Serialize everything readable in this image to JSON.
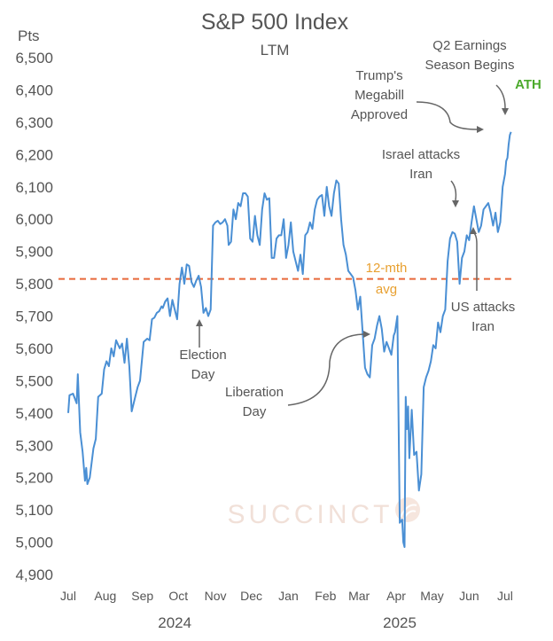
{
  "chart_data": {
    "type": "line",
    "title": "S&P 500 Index",
    "subtitle": "LTM",
    "ylabel": "Pts",
    "ylim": [
      4900,
      6500
    ],
    "yticks": [
      4900,
      5000,
      5100,
      5200,
      5300,
      5400,
      5500,
      5600,
      5700,
      5800,
      5900,
      6000,
      6100,
      6200,
      6300,
      6400,
      6500
    ],
    "ytick_labels": [
      "4,900",
      "5,000",
      "5,100",
      "5,200",
      "5,300",
      "5,400",
      "5,500",
      "5,600",
      "5,700",
      "5,800",
      "5,900",
      "6,000",
      "6,100",
      "6,200",
      "6,300",
      "6,400",
      "6,500"
    ],
    "xlim": [
      "2024-07-01",
      "2025-07-07"
    ],
    "xticks": [
      {
        "date": "2024-07-01",
        "label": "Jul"
      },
      {
        "date": "2024-08-01",
        "label": "Aug"
      },
      {
        "date": "2024-09-01",
        "label": "Sep"
      },
      {
        "date": "2024-10-01",
        "label": "Oct"
      },
      {
        "date": "2024-11-01",
        "label": "Nov"
      },
      {
        "date": "2024-12-01",
        "label": "Dec"
      },
      {
        "date": "2025-01-01",
        "label": "Jan"
      },
      {
        "date": "2025-02-01",
        "label": "Feb"
      },
      {
        "date": "2025-03-01",
        "label": "Mar"
      },
      {
        "date": "2025-04-01",
        "label": "Apr"
      },
      {
        "date": "2025-05-01",
        "label": "May"
      },
      {
        "date": "2025-06-01",
        "label": "Jun"
      },
      {
        "date": "2025-07-01",
        "label": "Jul"
      }
    ],
    "years": [
      {
        "label": "2024",
        "date": "2024-09-28"
      },
      {
        "label": "2025",
        "date": "2025-04-04"
      }
    ],
    "series": [
      {
        "color": "#4a8fd4",
        "points": [
          [
            "2024-07-01",
            5400
          ],
          [
            "2024-07-02",
            5455
          ],
          [
            "2024-07-05",
            5460
          ],
          [
            "2024-07-08",
            5430
          ],
          [
            "2024-07-09",
            5520
          ],
          [
            "2024-07-11",
            5340
          ],
          [
            "2024-07-13",
            5280
          ],
          [
            "2024-07-15",
            5190
          ],
          [
            "2024-07-16",
            5230
          ],
          [
            "2024-07-17",
            5180
          ],
          [
            "2024-07-19",
            5200
          ],
          [
            "2024-07-22",
            5290
          ],
          [
            "2024-07-24",
            5320
          ],
          [
            "2024-07-26",
            5450
          ],
          [
            "2024-07-29",
            5460
          ],
          [
            "2024-07-31",
            5535
          ],
          [
            "2024-08-02",
            5560
          ],
          [
            "2024-08-04",
            5545
          ],
          [
            "2024-08-06",
            5600
          ],
          [
            "2024-08-08",
            5575
          ],
          [
            "2024-08-10",
            5625
          ],
          [
            "2024-08-13",
            5600
          ],
          [
            "2024-08-15",
            5615
          ],
          [
            "2024-08-17",
            5555
          ],
          [
            "2024-08-19",
            5630
          ],
          [
            "2024-08-21",
            5545
          ],
          [
            "2024-08-23",
            5405
          ],
          [
            "2024-08-26",
            5450
          ],
          [
            "2024-08-28",
            5480
          ],
          [
            "2024-08-30",
            5500
          ],
          [
            "2024-09-02",
            5620
          ],
          [
            "2024-09-05",
            5630
          ],
          [
            "2024-09-07",
            5625
          ],
          [
            "2024-09-09",
            5690
          ],
          [
            "2024-09-11",
            5695
          ],
          [
            "2024-09-13",
            5710
          ],
          [
            "2024-09-15",
            5715
          ],
          [
            "2024-09-17",
            5730
          ],
          [
            "2024-09-18",
            5725
          ],
          [
            "2024-09-20",
            5745
          ],
          [
            "2024-09-22",
            5755
          ],
          [
            "2024-09-24",
            5700
          ],
          [
            "2024-09-26",
            5750
          ],
          [
            "2024-09-28",
            5720
          ],
          [
            "2024-09-30",
            5690
          ],
          [
            "2024-10-02",
            5800
          ],
          [
            "2024-10-04",
            5850
          ],
          [
            "2024-10-06",
            5800
          ],
          [
            "2024-10-08",
            5860
          ],
          [
            "2024-10-10",
            5855
          ],
          [
            "2024-10-12",
            5805
          ],
          [
            "2024-10-14",
            5790
          ],
          [
            "2024-10-16",
            5810
          ],
          [
            "2024-10-18",
            5825
          ],
          [
            "2024-10-20",
            5790
          ],
          [
            "2024-10-22",
            5710
          ],
          [
            "2024-10-24",
            5725
          ],
          [
            "2024-10-26",
            5700
          ],
          [
            "2024-10-28",
            5720
          ],
          [
            "2024-10-30",
            5980
          ],
          [
            "2024-11-01",
            5990
          ],
          [
            "2024-11-03",
            5995
          ],
          [
            "2024-11-05",
            5985
          ],
          [
            "2024-11-07",
            5990
          ],
          [
            "2024-11-09",
            6000
          ],
          [
            "2024-11-11",
            5980
          ],
          [
            "2024-11-12",
            5920
          ],
          [
            "2024-11-14",
            5930
          ],
          [
            "2024-11-16",
            6030
          ],
          [
            "2024-11-18",
            6000
          ],
          [
            "2024-11-20",
            6050
          ],
          [
            "2024-11-22",
            6040
          ],
          [
            "2024-11-24",
            6080
          ],
          [
            "2024-11-26",
            6080
          ],
          [
            "2024-11-28",
            6070
          ],
          [
            "2024-11-30",
            5940
          ],
          [
            "2024-12-02",
            5930
          ],
          [
            "2024-12-04",
            6010
          ],
          [
            "2024-12-06",
            5950
          ],
          [
            "2024-12-08",
            5920
          ],
          [
            "2024-12-10",
            6030
          ],
          [
            "2024-12-12",
            6080
          ],
          [
            "2024-12-14",
            6060
          ],
          [
            "2024-12-16",
            6065
          ],
          [
            "2024-12-18",
            5880
          ],
          [
            "2024-12-20",
            5880
          ],
          [
            "2024-12-22",
            5940
          ],
          [
            "2024-12-24",
            5950
          ],
          [
            "2024-12-26",
            5950
          ],
          [
            "2024-12-28",
            6000
          ],
          [
            "2024-12-30",
            5880
          ],
          [
            "2025-01-01",
            5920
          ],
          [
            "2025-01-03",
            5990
          ],
          [
            "2025-01-05",
            5900
          ],
          [
            "2025-01-07",
            5870
          ],
          [
            "2025-01-09",
            5840
          ],
          [
            "2025-01-11",
            5890
          ],
          [
            "2025-01-13",
            5830
          ],
          [
            "2025-01-15",
            5950
          ],
          [
            "2025-01-17",
            5960
          ],
          [
            "2025-01-19",
            5990
          ],
          [
            "2025-01-21",
            5970
          ],
          [
            "2025-01-23",
            6030
          ],
          [
            "2025-01-25",
            6060
          ],
          [
            "2025-01-27",
            6070
          ],
          [
            "2025-01-29",
            6075
          ],
          [
            "2025-01-31",
            6010
          ],
          [
            "2025-02-02",
            6100
          ],
          [
            "2025-02-04",
            6040
          ],
          [
            "2025-02-06",
            6010
          ],
          [
            "2025-02-08",
            6080
          ],
          [
            "2025-02-10",
            6120
          ],
          [
            "2025-02-12",
            6110
          ],
          [
            "2025-02-14",
            6000
          ],
          [
            "2025-02-16",
            5920
          ],
          [
            "2025-02-18",
            5890
          ],
          [
            "2025-02-20",
            5840
          ],
          [
            "2025-02-22",
            5830
          ],
          [
            "2025-02-24",
            5820
          ],
          [
            "2025-02-26",
            5780
          ],
          [
            "2025-02-28",
            5720
          ],
          [
            "2025-03-02",
            5760
          ],
          [
            "2025-03-04",
            5650
          ],
          [
            "2025-03-06",
            5540
          ],
          [
            "2025-03-08",
            5520
          ],
          [
            "2025-03-10",
            5510
          ],
          [
            "2025-03-12",
            5610
          ],
          [
            "2025-03-14",
            5630
          ],
          [
            "2025-03-16",
            5670
          ],
          [
            "2025-03-18",
            5700
          ],
          [
            "2025-03-20",
            5660
          ],
          [
            "2025-03-22",
            5590
          ],
          [
            "2025-03-24",
            5620
          ],
          [
            "2025-03-26",
            5600
          ],
          [
            "2025-03-28",
            5580
          ],
          [
            "2025-03-30",
            5640
          ],
          [
            "2025-03-31",
            5650
          ],
          [
            "2025-04-02",
            5700
          ],
          [
            "2025-04-04",
            5060
          ],
          [
            "2025-04-06",
            5070
          ],
          [
            "2025-04-07",
            5000
          ],
          [
            "2025-04-08",
            4985
          ],
          [
            "2025-04-09",
            5450
          ],
          [
            "2025-04-10",
            5350
          ],
          [
            "2025-04-11",
            5420
          ],
          [
            "2025-04-12",
            5260
          ],
          [
            "2025-04-14",
            5410
          ],
          [
            "2025-04-16",
            5270
          ],
          [
            "2025-04-18",
            5280
          ],
          [
            "2025-04-20",
            5160
          ],
          [
            "2025-04-22",
            5210
          ],
          [
            "2025-04-24",
            5480
          ],
          [
            "2025-04-26",
            5510
          ],
          [
            "2025-04-28",
            5530
          ],
          [
            "2025-04-30",
            5560
          ],
          [
            "2025-05-02",
            5610
          ],
          [
            "2025-05-04",
            5600
          ],
          [
            "2025-05-06",
            5680
          ],
          [
            "2025-05-08",
            5650
          ],
          [
            "2025-05-10",
            5700
          ],
          [
            "2025-05-12",
            5720
          ],
          [
            "2025-05-14",
            5870
          ],
          [
            "2025-05-16",
            5940
          ],
          [
            "2025-05-18",
            5960
          ],
          [
            "2025-05-20",
            5955
          ],
          [
            "2025-05-22",
            5930
          ],
          [
            "2025-05-24",
            5800
          ],
          [
            "2025-05-26",
            5880
          ],
          [
            "2025-05-28",
            5900
          ],
          [
            "2025-05-30",
            5950
          ],
          [
            "2025-06-01",
            5935
          ],
          [
            "2025-06-03",
            5990
          ],
          [
            "2025-06-05",
            6040
          ],
          [
            "2025-06-07",
            6000
          ],
          [
            "2025-06-09",
            5960
          ],
          [
            "2025-06-11",
            5980
          ],
          [
            "2025-06-13",
            6030
          ],
          [
            "2025-06-15",
            6040
          ],
          [
            "2025-06-17",
            6050
          ],
          [
            "2025-06-19",
            6020
          ],
          [
            "2025-06-21",
            5980
          ],
          [
            "2025-06-23",
            6020
          ],
          [
            "2025-06-25",
            5960
          ],
          [
            "2025-06-27",
            5990
          ],
          [
            "2025-06-29",
            6100
          ],
          [
            "2025-07-01",
            6140
          ],
          [
            "2025-07-02",
            6180
          ],
          [
            "2025-07-03",
            6190
          ],
          [
            "2025-07-04",
            6230
          ],
          [
            "2025-07-05",
            6260
          ],
          [
            "2025-07-06",
            6270
          ]
        ]
      }
    ],
    "reference_line": {
      "value": 5815,
      "label_line1": "12-mth",
      "label_line2": "avg",
      "color": "#e8693a"
    },
    "annotations": [
      {
        "lines": [
          "Election",
          "Day"
        ],
        "date": "2024-11-05"
      },
      {
        "lines": [
          "Liberation",
          "Day"
        ],
        "date": "2025-04-02"
      },
      {
        "lines": [
          "Trump's",
          "Megabill",
          "Approved"
        ],
        "date": "2025-07-03"
      },
      {
        "lines": [
          "Israel attacks",
          "Iran"
        ],
        "date": "2025-06-13"
      },
      {
        "lines": [
          "US attacks",
          "Iran"
        ],
        "date": "2025-06-21"
      },
      {
        "lines": [
          "Q2 Earnings",
          "Season Begins"
        ],
        "date": "2025-07-15"
      },
      {
        "lines": [
          "ATH"
        ],
        "date": "2025-07-06",
        "color": "#4caa2c"
      }
    ],
    "grid": false,
    "legend": "none"
  },
  "watermark": "SUCCINCT"
}
